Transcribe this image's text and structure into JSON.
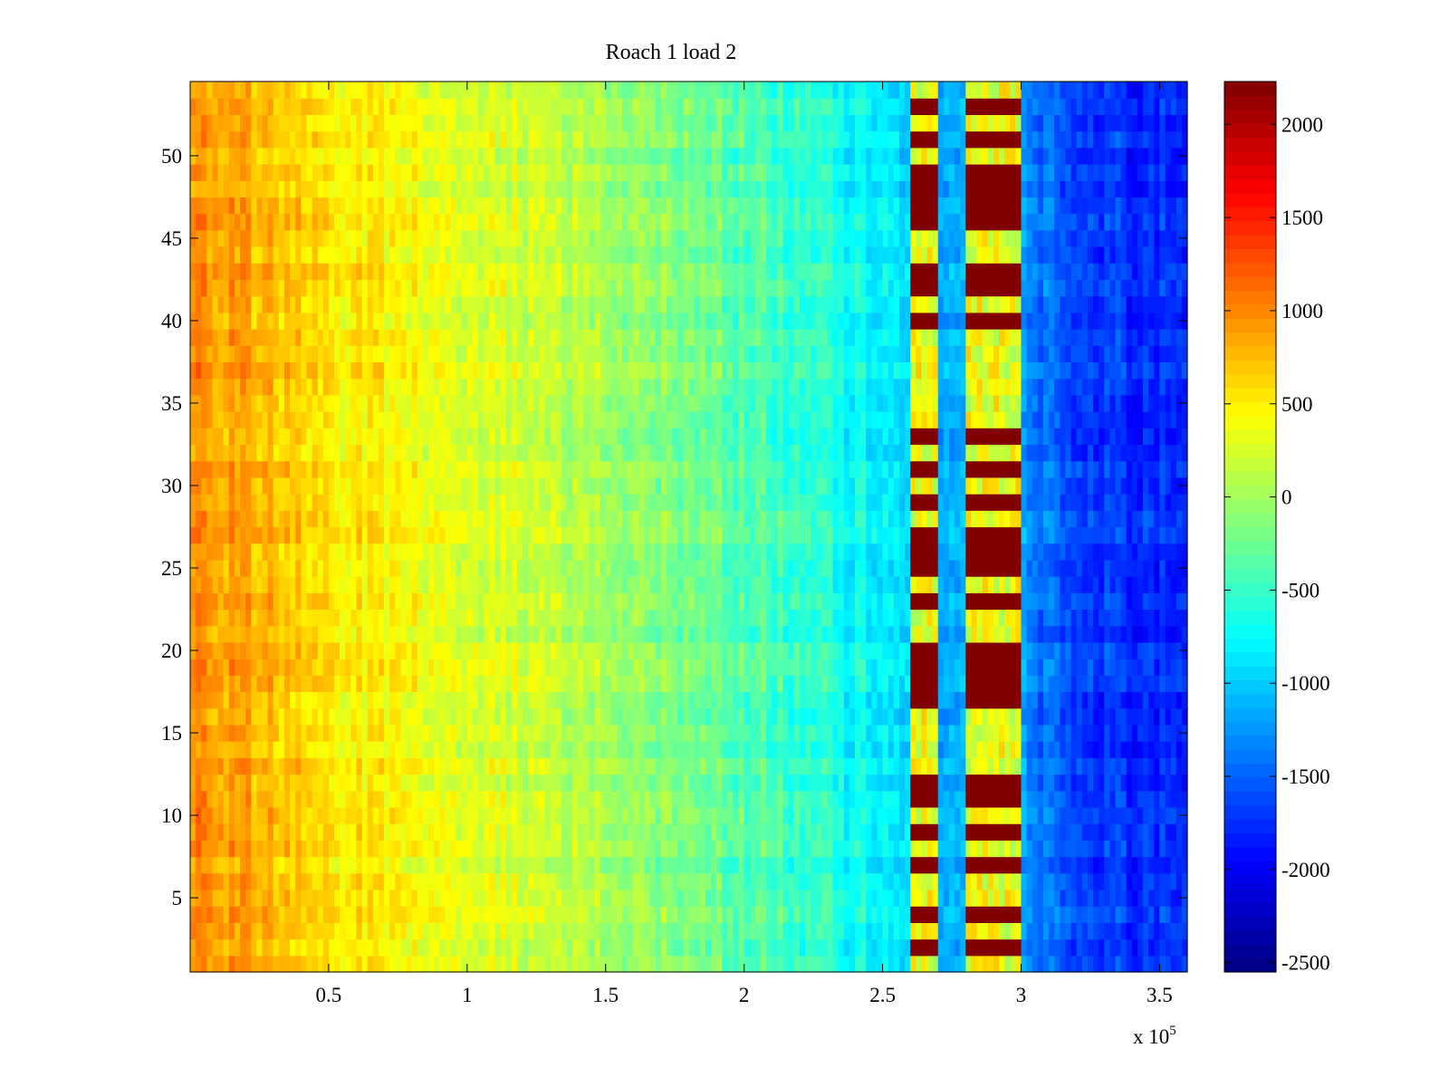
{
  "chart_data": {
    "type": "heatmap",
    "title": "Roach 1 load 2",
    "xlabel": "",
    "ylabel": "",
    "x_exponent_label": {
      "base": "x 10",
      "exponent": "5"
    },
    "xlim": [
      0,
      360000
    ],
    "ylim": [
      0.5,
      54.5
    ],
    "xticks": [
      50000,
      100000,
      150000,
      200000,
      250000,
      300000,
      350000
    ],
    "xtick_labels": [
      "0.5",
      "1",
      "1.5",
      "2",
      "2.5",
      "3",
      "3.5"
    ],
    "yticks": [
      5,
      10,
      15,
      20,
      25,
      30,
      35,
      40,
      45,
      50
    ],
    "ytick_labels": [
      "5",
      "10",
      "15",
      "20",
      "25",
      "30",
      "35",
      "40",
      "45",
      "50"
    ],
    "rows": 54,
    "colormap": "jet",
    "clim": [
      -2550,
      2230
    ],
    "colorbar_ticks": [
      2000,
      1500,
      1000,
      500,
      0,
      -500,
      -1000,
      -1500,
      -2000,
      -2500
    ],
    "colorbar_tick_labels": [
      "2000",
      "1500",
      "1000",
      "500",
      "0",
      "-500",
      "-1000",
      "-1500",
      "-2000",
      "-2500"
    ],
    "base_trend": [
      {
        "x": 0,
        "value": 950
      },
      {
        "x": 20000,
        "value": 800
      },
      {
        "x": 50000,
        "value": 550
      },
      {
        "x": 100000,
        "value": 300
      },
      {
        "x": 150000,
        "value": 50
      },
      {
        "x": 200000,
        "value": -350
      },
      {
        "x": 240000,
        "value": -700
      },
      {
        "x": 260000,
        "value": -900
      },
      {
        "x": 270000,
        "value": -1150
      },
      {
        "x": 300000,
        "value": -1300
      },
      {
        "x": 330000,
        "value": -1700
      },
      {
        "x": 360000,
        "value": -1800
      }
    ],
    "saturated_bands": [
      {
        "x_start": 260000,
        "x_end": 270000
      },
      {
        "x_start": 281000,
        "x_end": 300000
      }
    ],
    "saturated_rows": [
      2,
      4,
      7,
      9,
      11,
      12,
      17,
      18,
      19,
      20,
      23,
      25,
      26,
      27,
      29,
      31,
      33,
      40,
      42,
      43,
      46,
      47,
      48,
      49,
      51,
      53
    ]
  }
}
